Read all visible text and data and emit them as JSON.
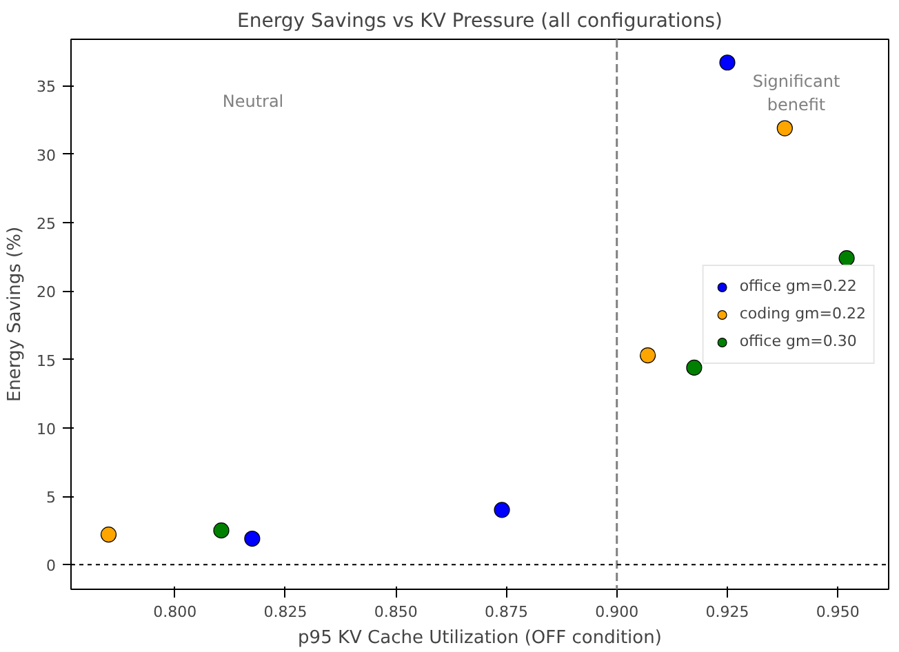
{
  "chart_data": {
    "type": "scatter",
    "title": "Energy Savings vs KV Pressure (all configurations)",
    "xlabel": "p95 KV Cache Utilization (OFF condition)",
    "ylabel": "Energy Savings (%)",
    "series": [
      {
        "name": "office gm=0.22",
        "color": "#0000ff",
        "x": [
          0.8175,
          0.874,
          0.925
        ],
        "values": [
          1.9,
          4.0,
          36.7
        ]
      },
      {
        "name": "coding gm=0.22",
        "color": "#ffa500",
        "x": [
          0.785,
          0.907,
          0.938
        ],
        "values": [
          2.2,
          15.3,
          31.9
        ]
      },
      {
        "name": "office gm=0.30",
        "color": "#008000",
        "x": [
          0.8105,
          0.9175,
          0.952
        ],
        "values": [
          2.5,
          14.4,
          22.4
        ]
      }
    ],
    "xlim": [
      0.7765,
      0.9615
    ],
    "ylim": [
      -1.8,
      38.4
    ],
    "xticks": [
      {
        "value": 0.8,
        "label": "0.800"
      },
      {
        "value": 0.825,
        "label": "0.825"
      },
      {
        "value": 0.85,
        "label": "0.850"
      },
      {
        "value": 0.875,
        "label": "0.875"
      },
      {
        "value": 0.9,
        "label": "0.900"
      },
      {
        "value": 0.925,
        "label": "0.925"
      },
      {
        "value": 0.95,
        "label": "0.950"
      }
    ],
    "yticks": [
      0,
      5,
      10,
      15,
      20,
      25,
      30,
      35
    ],
    "ref_lines": [
      {
        "axis": "x",
        "value": 0.9,
        "color": "#808080",
        "line_style": "dashed"
      },
      {
        "axis": "y",
        "value": 0,
        "color": "#000000",
        "line_style": "dotted"
      }
    ],
    "annotations": [
      "Neutral",
      "Significant\nbenefit"
    ],
    "legend": "right",
    "marker": "circle",
    "grid": false
  }
}
